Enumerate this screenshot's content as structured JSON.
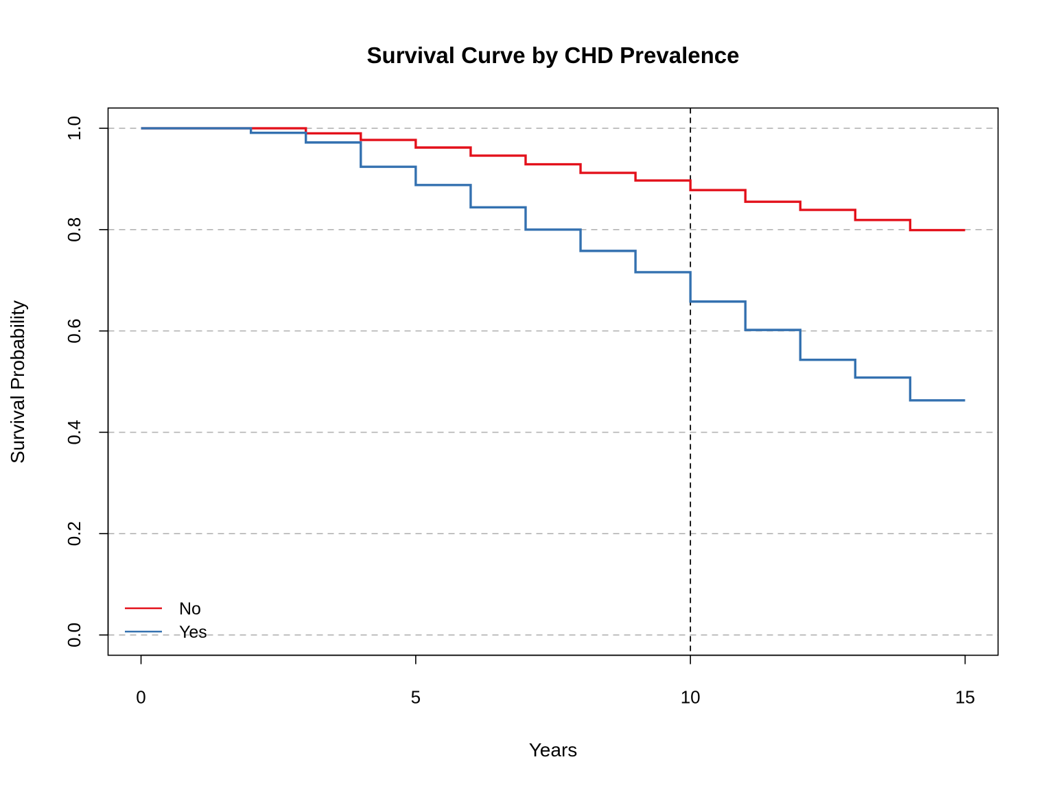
{
  "chart_data": {
    "type": "line",
    "step": true,
    "title": "Survival Curve by CHD Prevalence",
    "xlabel": "Years",
    "ylabel": "Survival Probability",
    "xlim": [
      -0.6,
      15.6
    ],
    "ylim": [
      -0.04,
      1.04
    ],
    "x_ticks": [
      0,
      5,
      10,
      15
    ],
    "x_tick_labels": [
      "0",
      "5",
      "10",
      "15"
    ],
    "y_ticks": [
      0,
      0.2,
      0.4,
      0.6,
      0.8,
      1.0
    ],
    "y_tick_labels": [
      "0.0",
      "0.2",
      "0.4",
      "0.6",
      "0.8",
      "1.0"
    ],
    "grid": {
      "horizontal": true,
      "style": "dashed",
      "color": "#b3b3b3"
    },
    "reference_line": {
      "x": 10,
      "style": "dashed",
      "color": "#000000"
    },
    "legend": {
      "position": "bottom-left",
      "entries": [
        "No",
        "Yes"
      ]
    },
    "series": [
      {
        "name": "No",
        "color": "#e3111b",
        "x": [
          0,
          2,
          3,
          4,
          5,
          6,
          7,
          8,
          9,
          10,
          11,
          12,
          13,
          14,
          15
        ],
        "values": [
          1.0,
          1.0,
          0.99,
          0.977,
          0.962,
          0.946,
          0.929,
          0.912,
          0.897,
          0.878,
          0.855,
          0.839,
          0.819,
          0.799,
          0.799
        ]
      },
      {
        "name": "Yes",
        "color": "#3471b0",
        "x": [
          0,
          2,
          3,
          4,
          5,
          6,
          7,
          8,
          9,
          10,
          11,
          12,
          13,
          14,
          15
        ],
        "values": [
          1.0,
          0.991,
          0.972,
          0.924,
          0.888,
          0.844,
          0.8,
          0.758,
          0.716,
          0.658,
          0.602,
          0.543,
          0.508,
          0.463,
          0.463
        ]
      }
    ]
  }
}
